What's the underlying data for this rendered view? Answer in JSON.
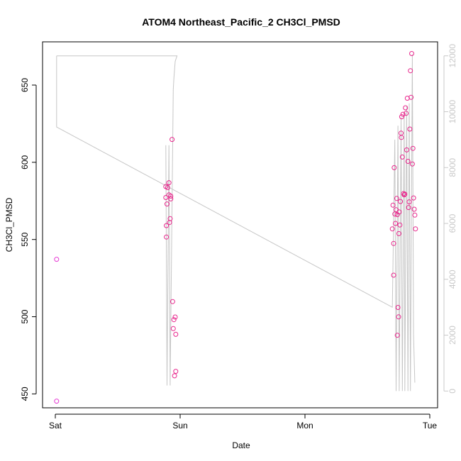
{
  "chart_data": {
    "type": "scatter",
    "title": "ATOM4 Northeast_Pacific_2 CH3Cl_PMSD",
    "xlabel": "Date",
    "ylabel": "CH3Cl_PMSD",
    "x_axis_type": "date",
    "x_ticks": [
      {
        "value": 0,
        "label": "Sat"
      },
      {
        "value": 1,
        "label": "Sun"
      },
      {
        "value": 2,
        "label": "Mon"
      },
      {
        "value": 3,
        "label": "Tue"
      }
    ],
    "xlim": [
      0,
      3
    ],
    "ylim": [
      441,
      678
    ],
    "y_ticks": [
      450,
      500,
      550,
      600,
      650
    ],
    "y2lim": [
      -600,
      12500
    ],
    "y2_ticks": [
      0,
      2000,
      4000,
      6000,
      8000,
      10000,
      12000
    ],
    "grid": false,
    "legend": "none",
    "colors": {
      "points": "#e8268c",
      "points_magenta": "#e63ad4",
      "line": "#c6c6c6",
      "right_axis": "#c8c8c8"
    },
    "series": [
      {
        "axis": "left",
        "marker": "open-circle",
        "points": [
          [
            0.01,
            537.2
          ],
          [
            0.01,
            445.3
          ],
          [
            0.885,
            584.3
          ],
          [
            0.885,
            577.2
          ],
          [
            0.89,
            551.6
          ],
          [
            0.89,
            559.0
          ],
          [
            0.895,
            573.0
          ],
          [
            0.9,
            583.6
          ],
          [
            0.91,
            586.8
          ],
          [
            0.91,
            578.9
          ],
          [
            0.915,
            561.0
          ],
          [
            0.92,
            563.5
          ],
          [
            0.925,
            578.1
          ],
          [
            0.925,
            576.3
          ],
          [
            0.935,
            614.8
          ],
          [
            0.94,
            509.8
          ],
          [
            0.945,
            492.3
          ],
          [
            0.95,
            498.1
          ],
          [
            0.955,
            461.7
          ],
          [
            0.96,
            499.8
          ],
          [
            0.965,
            488.6
          ],
          [
            0.965,
            464.6
          ],
          [
            2.7,
            556.9
          ],
          [
            2.705,
            572.2
          ],
          [
            2.71,
            526.9
          ],
          [
            2.71,
            547.4
          ],
          [
            2.715,
            596.5
          ],
          [
            2.72,
            566.5
          ],
          [
            2.725,
            560.4
          ],
          [
            2.73,
            569.3
          ],
          [
            2.735,
            576.6
          ],
          [
            2.74,
            566.1
          ],
          [
            2.74,
            488.0
          ],
          [
            2.745,
            506.0
          ],
          [
            2.75,
            499.9
          ],
          [
            2.752,
            553.8
          ],
          [
            2.755,
            567.8
          ],
          [
            2.76,
            559.4
          ],
          [
            2.765,
            574.6
          ],
          [
            2.77,
            618.9
          ],
          [
            2.772,
            616.1
          ],
          [
            2.775,
            629.5
          ],
          [
            2.78,
            603.4
          ],
          [
            2.785,
            631.1
          ],
          [
            2.79,
            579.7
          ],
          [
            2.795,
            578.9
          ],
          [
            2.8,
            579.4
          ],
          [
            2.805,
            635.3
          ],
          [
            2.81,
            631.7
          ],
          [
            2.815,
            608.0
          ],
          [
            2.82,
            641.5
          ],
          [
            2.825,
            600.6
          ],
          [
            2.83,
            570.7
          ],
          [
            2.835,
            574.4
          ],
          [
            2.84,
            621.5
          ],
          [
            2.845,
            659.3
          ],
          [
            2.85,
            642.1
          ],
          [
            2.855,
            670.4
          ],
          [
            2.86,
            598.9
          ],
          [
            2.865,
            609.0
          ],
          [
            2.87,
            576.9
          ],
          [
            2.875,
            569.6
          ],
          [
            2.88,
            565.8
          ],
          [
            2.885,
            556.9
          ]
        ]
      },
      {
        "axis": "right",
        "style": "line",
        "points": [
          [
            0.01,
            12000
          ],
          [
            0.01,
            9450
          ],
          [
            2.7,
            3000
          ],
          [
            2.72,
            9000
          ],
          [
            2.73,
            0
          ],
          [
            2.745,
            9500
          ],
          [
            2.755,
            0
          ],
          [
            2.77,
            9800
          ],
          [
            2.78,
            0
          ],
          [
            2.795,
            10000
          ],
          [
            2.8,
            0
          ],
          [
            2.815,
            10200
          ],
          [
            2.825,
            0
          ],
          [
            2.835,
            10300
          ],
          [
            2.845,
            0
          ],
          [
            2.86,
            12050
          ],
          [
            2.87,
            2000
          ],
          [
            2.88,
            300
          ]
        ]
      },
      {
        "axis": "right",
        "style": "line",
        "points": [
          [
            0.885,
            8800
          ],
          [
            0.895,
            200
          ],
          [
            0.91,
            8800
          ],
          [
            0.92,
            200
          ],
          [
            0.945,
            10800
          ],
          [
            0.95,
            11200
          ],
          [
            0.96,
            11800
          ],
          [
            0.975,
            12000
          ],
          [
            0.975,
            12000
          ],
          [
            0.01,
            12000
          ]
        ]
      }
    ]
  }
}
